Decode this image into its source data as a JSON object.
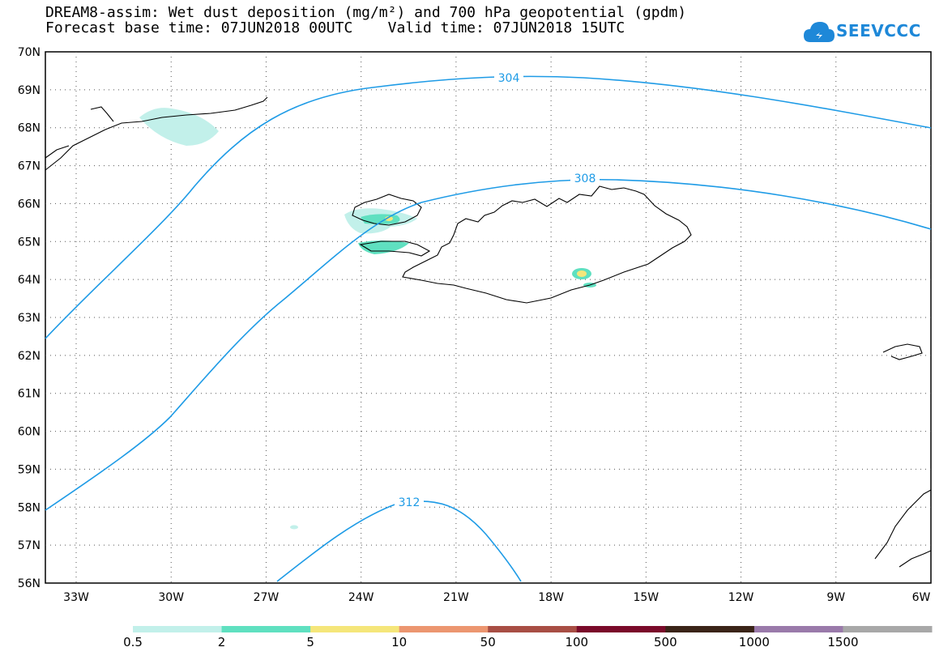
{
  "header": {
    "title_line1": "DREAM8-assim: Wet dust deposition (mg/m²) and 700 hPa geopotential (gpdm)",
    "title_line2": "Forecast base time: 07JUN2018 00UTC    Valid time: 07JUN2018 15UTC"
  },
  "logo": {
    "text": "SEEVCCC",
    "icon": "cloud-icon",
    "color": "#1e88d8"
  },
  "map": {
    "lat_labels": [
      "70N",
      "69N",
      "68N",
      "67N",
      "66N",
      "65N",
      "64N",
      "63N",
      "62N",
      "61N",
      "60N",
      "59N",
      "58N",
      "57N",
      "56N"
    ],
    "lon_labels": [
      "33W",
      "30W",
      "27W",
      "24W",
      "21W",
      "18W",
      "15W",
      "12W",
      "9W",
      "6W"
    ],
    "contour_color": "#1e9be6",
    "contours": [
      {
        "label": "304"
      },
      {
        "label": "308"
      },
      {
        "label": "312"
      }
    ]
  },
  "legend": {
    "labels": [
      "0.5",
      "2",
      "5",
      "10",
      "50",
      "100",
      "500",
      "1000",
      "1500"
    ],
    "colors": [
      "#c2f0ea",
      "#5fe0c0",
      "#f5e67a",
      "#ec9670",
      "#a84e44",
      "#7a0a2a",
      "#3a2418",
      "#9a7aaa",
      "#a8a8a8"
    ]
  }
}
